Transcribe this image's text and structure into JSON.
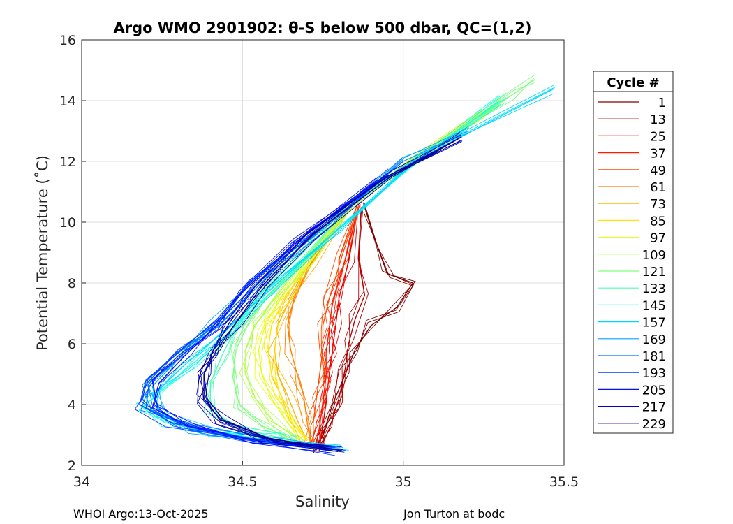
{
  "chart_data": {
    "type": "line",
    "title": "Argo WMO 2901902: θ-S below 500 dbar,  QC=(1,2)",
    "xlabel": "Salinity",
    "ylabel": "Potential Temperature (˚C)",
    "xlim": [
      34,
      35.5
    ],
    "ylim": [
      2,
      16
    ],
    "xticks": [
      "34",
      "34.5",
      "35",
      "35.5"
    ],
    "yticks": [
      "2",
      "4",
      "6",
      "8",
      "10",
      "12",
      "14",
      "16"
    ],
    "grid": true,
    "legend": {
      "title": "Cycle #",
      "location": "outside-right",
      "entries": [
        {
          "label": "1",
          "color": "#7f0000"
        },
        {
          "label": "13",
          "color": "#b20000"
        },
        {
          "label": "25",
          "color": "#e50000"
        },
        {
          "label": "37",
          "color": "#ff1a00"
        },
        {
          "label": "49",
          "color": "#ff4d00"
        },
        {
          "label": "61",
          "color": "#ff8000"
        },
        {
          "label": "73",
          "color": "#ffb300"
        },
        {
          "label": "85",
          "color": "#ffe600"
        },
        {
          "label": "97",
          "color": "#e6ff1a"
        },
        {
          "label": "109",
          "color": "#b3ff4d"
        },
        {
          "label": "121",
          "color": "#80ff80"
        },
        {
          "label": "133",
          "color": "#4dffb3"
        },
        {
          "label": "145",
          "color": "#1affe6"
        },
        {
          "label": "157",
          "color": "#00d9ff"
        },
        {
          "label": "169",
          "color": "#00a6ff"
        },
        {
          "label": "181",
          "color": "#0073ff"
        },
        {
          "label": "193",
          "color": "#0040ff"
        },
        {
          "label": "205",
          "color": "#000dff"
        },
        {
          "label": "217",
          "color": "#0000c0"
        },
        {
          "label": "229",
          "color": "#00008f"
        }
      ]
    },
    "series": [
      {
        "name": "1",
        "color": "#7f0000",
        "x": [
          34.72,
          34.75,
          34.78,
          34.82,
          34.85,
          34.9,
          34.98,
          35.03,
          34.95,
          34.92,
          34.88
        ],
        "y": [
          2.4,
          3.0,
          4.0,
          5.0,
          5.8,
          6.6,
          7.2,
          8.0,
          8.3,
          9.2,
          10.5
        ]
      },
      {
        "name": "13",
        "color": "#b20000",
        "x": [
          34.74,
          34.77,
          34.8,
          34.82,
          34.83,
          34.85,
          34.88,
          34.86,
          34.87
        ],
        "y": [
          2.5,
          3.2,
          4.2,
          5.2,
          6.0,
          6.8,
          7.6,
          8.8,
          10.5
        ]
      },
      {
        "name": "25",
        "color": "#e50000",
        "x": [
          34.74,
          34.75,
          34.76,
          34.77,
          34.78,
          34.79,
          34.8,
          34.83,
          34.86
        ],
        "y": [
          2.6,
          3.3,
          4.1,
          5.0,
          5.8,
          6.6,
          7.5,
          8.7,
          10.5
        ]
      },
      {
        "name": "37",
        "color": "#ff1a00",
        "x": [
          34.73,
          34.74,
          34.75,
          34.76,
          34.76,
          34.77,
          34.78,
          34.82,
          34.86
        ],
        "y": [
          2.7,
          3.3,
          4.1,
          4.9,
          5.7,
          6.5,
          7.4,
          8.8,
          10.5
        ]
      },
      {
        "name": "49",
        "color": "#ff4d00",
        "x": [
          34.72,
          34.72,
          34.73,
          34.74,
          34.75,
          34.75,
          34.77,
          34.81,
          34.86
        ],
        "y": [
          2.8,
          3.4,
          4.2,
          5.0,
          5.8,
          6.6,
          7.5,
          8.9,
          10.5
        ]
      },
      {
        "name": "61",
        "color": "#ff8000",
        "x": [
          34.71,
          34.7,
          34.69,
          34.67,
          34.65,
          34.64,
          34.66,
          34.72,
          34.84
        ],
        "y": [
          2.8,
          3.5,
          4.3,
          5.0,
          5.8,
          6.6,
          7.5,
          8.8,
          10.6
        ]
      },
      {
        "name": "73",
        "color": "#ffb300",
        "x": [
          34.7,
          34.67,
          34.64,
          34.61,
          34.6,
          34.61,
          34.65,
          34.72,
          34.84
        ],
        "y": [
          2.8,
          3.5,
          4.3,
          5.0,
          5.8,
          6.6,
          7.5,
          8.7,
          10.6
        ]
      },
      {
        "name": "85",
        "color": "#ffe600",
        "x": [
          34.7,
          34.66,
          34.62,
          34.59,
          34.58,
          34.59,
          34.63,
          34.71,
          34.84,
          35.05,
          35.25
        ],
        "y": [
          2.8,
          3.5,
          4.3,
          5.0,
          5.8,
          6.6,
          7.5,
          8.7,
          10.6,
          12.2,
          13.6
        ]
      },
      {
        "name": "97",
        "color": "#e6ff1a",
        "x": [
          34.69,
          34.64,
          34.59,
          34.56,
          34.55,
          34.57,
          34.62,
          34.7,
          34.84,
          35.05,
          35.28
        ],
        "y": [
          2.8,
          3.4,
          4.2,
          5.0,
          5.8,
          6.6,
          7.5,
          8.7,
          10.6,
          12.2,
          13.8
        ]
      },
      {
        "name": "109",
        "color": "#b3ff4d",
        "x": [
          34.68,
          34.6,
          34.54,
          34.51,
          34.51,
          34.54,
          34.6,
          34.69,
          34.84,
          35.06,
          35.3
        ],
        "y": [
          2.8,
          3.4,
          4.2,
          5.0,
          5.8,
          6.6,
          7.5,
          8.7,
          10.6,
          12.2,
          14.0
        ]
      },
      {
        "name": "121",
        "color": "#80ff80",
        "x": [
          34.67,
          34.56,
          34.49,
          34.47,
          34.48,
          34.52,
          34.58,
          34.68,
          34.84,
          35.06,
          35.34,
          35.41
        ],
        "y": [
          2.8,
          3.3,
          4.0,
          4.9,
          5.8,
          6.7,
          7.6,
          8.7,
          10.6,
          12.2,
          14.2,
          14.7
        ]
      },
      {
        "name": "133",
        "color": "#4dffb3",
        "x": [
          34.66,
          34.5,
          34.4,
          34.4,
          34.44,
          34.49,
          34.56,
          34.67,
          34.83,
          35.06,
          35.32
        ],
        "y": [
          2.8,
          3.2,
          3.8,
          4.7,
          5.7,
          6.7,
          7.7,
          8.8,
          10.6,
          12.2,
          14.1
        ]
      },
      {
        "name": "145",
        "color": "#1affe6",
        "x": [
          34.62,
          34.42,
          34.26,
          34.19,
          34.25,
          34.34,
          34.45,
          34.58,
          34.78,
          35.03,
          35.3
        ],
        "y": [
          2.9,
          3.1,
          3.4,
          3.9,
          4.5,
          5.3,
          6.3,
          7.6,
          9.6,
          11.9,
          14.0
        ]
      },
      {
        "name": "157",
        "color": "#00d9ff",
        "x": [
          34.82,
          34.6,
          34.4,
          34.25,
          34.22,
          34.32,
          34.45,
          34.6,
          34.8,
          35.05,
          35.47
        ],
        "y": [
          2.5,
          2.7,
          3.1,
          3.6,
          4.3,
          5.3,
          6.5,
          7.9,
          9.8,
          12.1,
          14.4
        ]
      },
      {
        "name": "169",
        "color": "#00a6ff",
        "x": [
          34.8,
          34.55,
          34.35,
          34.24,
          34.22,
          34.3,
          34.42,
          34.56,
          34.76,
          35.0,
          35.2
        ],
        "y": [
          2.5,
          2.8,
          3.2,
          3.8,
          4.6,
          5.5,
          6.7,
          8.1,
          9.9,
          12.0,
          13.0
        ]
      },
      {
        "name": "181",
        "color": "#0073ff",
        "x": [
          34.8,
          34.52,
          34.32,
          34.2,
          34.21,
          34.3,
          34.43,
          34.57,
          34.77,
          35.0
        ],
        "y": [
          2.5,
          2.9,
          3.3,
          3.9,
          4.7,
          5.6,
          6.8,
          8.2,
          10.0,
          12.0
        ]
      },
      {
        "name": "193",
        "color": "#0040ff",
        "x": [
          34.78,
          34.5,
          34.28,
          34.18,
          34.2,
          34.3,
          34.42,
          34.52,
          34.7,
          34.95
        ],
        "y": [
          2.5,
          2.9,
          3.4,
          4.0,
          4.8,
          5.7,
          6.8,
          8.0,
          9.6,
          11.6
        ]
      },
      {
        "name": "205",
        "color": "#000dff",
        "x": [
          34.8,
          34.55,
          34.33,
          34.22,
          34.24,
          34.32,
          34.42,
          34.5,
          34.66,
          34.92
        ],
        "y": [
          2.5,
          2.8,
          3.3,
          3.9,
          4.7,
          5.6,
          6.6,
          7.7,
          9.3,
          11.4
        ]
      },
      {
        "name": "217",
        "color": "#0000c0",
        "x": [
          34.8,
          34.58,
          34.43,
          34.38,
          34.38,
          34.41,
          34.46,
          34.54,
          34.7,
          34.95,
          35.18
        ],
        "y": [
          2.5,
          2.9,
          3.5,
          4.2,
          5.0,
          5.8,
          6.7,
          7.9,
          9.6,
          11.5,
          12.8
        ]
      },
      {
        "name": "229",
        "color": "#00008f",
        "x": [
          34.8,
          34.58,
          34.44,
          34.39,
          34.38,
          34.42,
          34.48,
          34.56,
          34.72,
          34.96,
          35.18
        ],
        "y": [
          2.5,
          2.9,
          3.5,
          4.2,
          5.0,
          5.8,
          6.7,
          7.9,
          9.6,
          11.5,
          12.8
        ]
      }
    ]
  },
  "footer": {
    "left": "WHOI Argo:13-Oct-2025",
    "right": "Jon Turton at bodc"
  }
}
